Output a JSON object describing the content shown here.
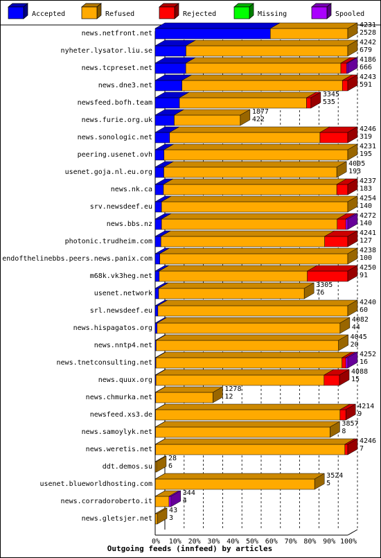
{
  "chart_data": {
    "type": "bar",
    "stacked": true,
    "orientation": "horizontal",
    "title": "Outgoing feeds (innfeed) by articles",
    "legend_position": "top",
    "xlim": [
      0,
      100
    ],
    "x_ticks": [
      "0%",
      "10%",
      "20%",
      "30%",
      "40%",
      "50%",
      "60%",
      "70%",
      "80%",
      "90%",
      "100%"
    ],
    "series": [
      {
        "name": "Accepted",
        "color": "#0000ff"
      },
      {
        "name": "Refused",
        "color": "#ffaa00"
      },
      {
        "name": "Rejected",
        "color": "#ff0000"
      },
      {
        "name": "Missing",
        "color": "#00ff00"
      },
      {
        "name": "Spooled",
        "color": "#aa00ff"
      }
    ],
    "rows": [
      {
        "name": "news.netfront.net",
        "offered": "4231",
        "accepted": "2528",
        "seg": [
          59.8,
          40.2,
          0,
          0,
          0
        ]
      },
      {
        "name": "nyheter.lysator.liu.se",
        "offered": "4242",
        "accepted": "679",
        "seg": [
          16.0,
          84.0,
          0,
          0,
          0
        ]
      },
      {
        "name": "news.tcpreset.net",
        "offered": "4186",
        "accepted": "666",
        "seg": [
          15.9,
          80.5,
          3.0,
          0,
          0.6
        ]
      },
      {
        "name": "news.dne3.net",
        "offered": "4243",
        "accepted": "591",
        "seg": [
          13.9,
          83.3,
          2.8,
          0,
          0
        ]
      },
      {
        "name": "newsfeed.bofh.team",
        "offered": "3345",
        "accepted": "535",
        "seg": [
          12.6,
          66.0,
          2.3,
          0,
          0
        ]
      },
      {
        "name": "news.furie.org.uk",
        "offered": "1877",
        "accepted": "422",
        "seg": [
          9.9,
          34.3,
          0,
          0,
          0
        ]
      },
      {
        "name": "news.sonologic.net",
        "offered": "4246",
        "accepted": "319",
        "seg": [
          7.5,
          78.1,
          14.4,
          0,
          0
        ]
      },
      {
        "name": "peering.usenet.ovh",
        "offered": "4231",
        "accepted": "195",
        "seg": [
          4.6,
          95.4,
          0,
          0,
          0
        ]
      },
      {
        "name": "usenet.goja.nl.eu.org",
        "offered": "4005",
        "accepted": "193",
        "seg": [
          4.5,
          89.8,
          0,
          0,
          0
        ]
      },
      {
        "name": "news.nk.ca",
        "offered": "4237",
        "accepted": "183",
        "seg": [
          4.3,
          90.0,
          5.7,
          0,
          0
        ]
      },
      {
        "name": "srv.newsdeef.eu",
        "offered": "4254",
        "accepted": "140",
        "seg": [
          3.3,
          96.7,
          0,
          0,
          0
        ]
      },
      {
        "name": "news.bbs.nz",
        "offered": "4272",
        "accepted": "140",
        "seg": [
          3.3,
          91.2,
          4.5,
          0,
          1.0
        ]
      },
      {
        "name": "photonic.trudheim.com",
        "offered": "4241",
        "accepted": "127",
        "seg": [
          3.0,
          85.0,
          12.0,
          0,
          0
        ]
      },
      {
        "name": "endofthelinebbs.peers.news.panix.com",
        "offered": "4238",
        "accepted": "100",
        "seg": [
          2.4,
          97.6,
          0,
          0,
          0
        ]
      },
      {
        "name": "m68k.vk3heg.net",
        "offered": "4250",
        "accepted": "91",
        "seg": [
          2.1,
          76.9,
          21.0,
          0,
          0
        ]
      },
      {
        "name": "usenet.network",
        "offered": "3305",
        "accepted": "76",
        "seg": [
          1.8,
          75.6,
          0,
          0,
          0
        ]
      },
      {
        "name": "srl.newsdeef.eu",
        "offered": "4240",
        "accepted": "60",
        "seg": [
          1.4,
          98.6,
          0,
          0,
          0
        ]
      },
      {
        "name": "news.hispagatos.org",
        "offered": "4082",
        "accepted": "44",
        "seg": [
          1.0,
          95.0,
          0,
          0,
          0
        ]
      },
      {
        "name": "news.nntp4.net",
        "offered": "4045",
        "accepted": "20",
        "seg": [
          0.5,
          94.7,
          0,
          0,
          0
        ]
      },
      {
        "name": "news.tnetconsulting.net",
        "offered": "4252",
        "accepted": "16",
        "seg": [
          0.4,
          96.6,
          2.0,
          0,
          1.0
        ]
      },
      {
        "name": "news.quux.org",
        "offered": "4088",
        "accepted": "15",
        "seg": [
          0.4,
          87.3,
          8.0,
          0,
          0
        ]
      },
      {
        "name": "news.chmurka.net",
        "offered": "1278",
        "accepted": "12",
        "seg": [
          0.3,
          29.7,
          0,
          0,
          0
        ]
      },
      {
        "name": "newsfeed.xs3.de",
        "offered": "4214",
        "accepted": "9",
        "seg": [
          0.2,
          95.8,
          3.0,
          0,
          0
        ]
      },
      {
        "name": "news.samoylyk.net",
        "offered": "3857",
        "accepted": "8",
        "seg": [
          0.2,
          90.6,
          0,
          0,
          0
        ]
      },
      {
        "name": "news.weretis.net",
        "offered": "4246",
        "accepted": "7",
        "seg": [
          0.2,
          98.3,
          1.5,
          0,
          0
        ]
      },
      {
        "name": "ddt.demos.su",
        "offered": "28",
        "accepted": "6",
        "seg": [
          0.1,
          0.6,
          0,
          0,
          0
        ]
      },
      {
        "name": "usenet.blueworldhosting.com",
        "offered": "3524",
        "accepted": "5",
        "seg": [
          0.1,
          82.7,
          0,
          0,
          0
        ]
      },
      {
        "name": "news.corradoroberto.it",
        "offered": "344",
        "accepted": "4",
        "seg": [
          0.1,
          7.1,
          0,
          0,
          1.0
        ]
      },
      {
        "name": "news.gletsjer.net",
        "offered": "43",
        "accepted": "3",
        "seg": [
          0.1,
          1.0,
          0,
          0,
          0
        ]
      }
    ]
  }
}
